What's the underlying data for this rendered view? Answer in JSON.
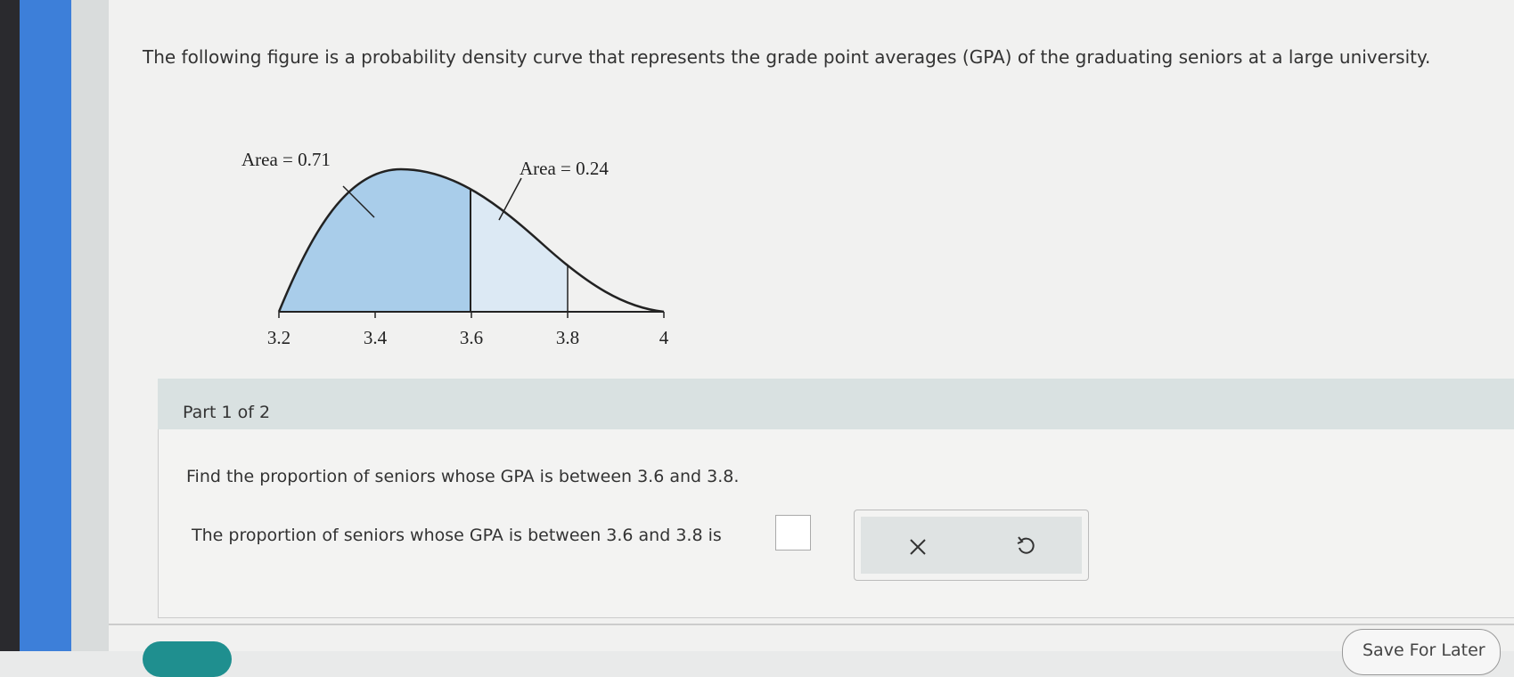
{
  "question": {
    "text": "The following figure is a probability density curve that represents the grade point averages (GPA) of the graduating seniors at a large university."
  },
  "figure": {
    "area_labels": [
      "Area = 0.71",
      "Area = 0.24"
    ],
    "ticks": [
      3.2,
      3.4,
      3.6,
      3.8,
      4
    ]
  },
  "part": {
    "label": "Part 1 of 2",
    "prompt": "Find the proportion of seniors whose GPA is between 3.6 and 3.8.",
    "answer_sentence": "The proportion of seniors whose GPA is between 3.6 and 3.8 is"
  },
  "footer": {
    "save_button": "Save For Later"
  }
}
